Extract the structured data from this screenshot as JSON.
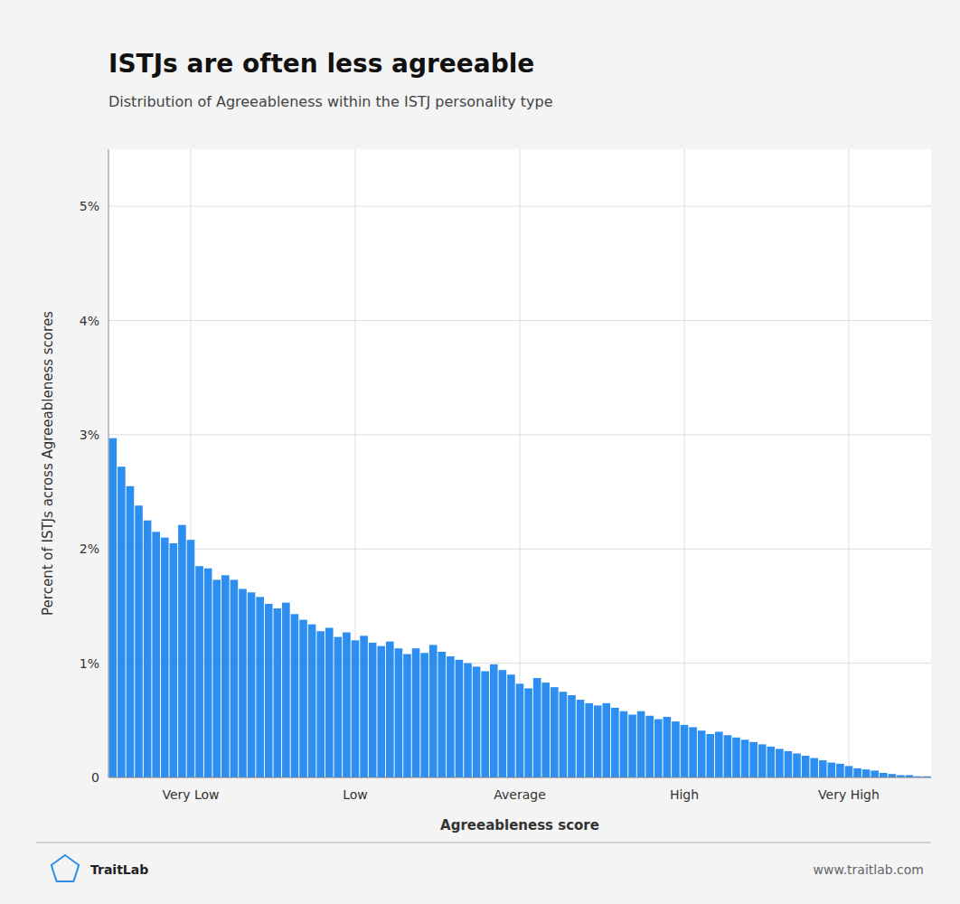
{
  "chart_data": {
    "type": "bar",
    "title": "ISTJs are often less agreeable",
    "subtitle": "Distribution of Agreeableness within the ISTJ personality type",
    "xlabel": "Agreeableness score",
    "ylabel": "Percent of ISTJs across Agreeableness scores",
    "annotations": [
      "TraitLab",
      "www.traitlab.com"
    ],
    "color": "#2B8EF0",
    "grid": true,
    "ylim": [
      0,
      0.055
    ],
    "yticks": [
      0,
      {
        "value": 0.01,
        "label": "1%"
      },
      {
        "value": 0.02,
        "label": "2%"
      },
      {
        "value": 0.03,
        "label": "3%"
      },
      {
        "value": 0.04,
        "label": "4%"
      },
      {
        "value": 0.05,
        "label": "5%"
      }
    ],
    "categories": [
      null,
      null,
      null,
      null,
      null,
      null,
      null,
      null,
      null,
      "Very Low",
      null,
      null,
      null,
      null,
      null,
      null,
      null,
      null,
      null,
      null,
      null,
      null,
      null,
      null,
      null,
      null,
      null,
      null,
      "Low",
      null,
      null,
      null,
      null,
      null,
      null,
      null,
      null,
      null,
      null,
      null,
      null,
      null,
      null,
      null,
      null,
      null,
      null,
      "Average",
      null,
      null,
      null,
      null,
      null,
      null,
      null,
      null,
      null,
      null,
      null,
      null,
      null,
      null,
      null,
      null,
      null,
      null,
      "High",
      null,
      null,
      null,
      null,
      null,
      null,
      null,
      null,
      null,
      null,
      null,
      null,
      null,
      null,
      null,
      null,
      null,
      null,
      "Very High",
      null,
      null,
      null,
      null,
      null,
      null,
      null,
      null,
      null
    ],
    "values": [
      0.0297,
      0.0272,
      0.0255,
      0.0238,
      0.0225,
      0.0215,
      0.021,
      0.0205,
      0.0221,
      0.0208,
      0.0185,
      0.0183,
      0.0173,
      0.0177,
      0.0173,
      0.0165,
      0.0162,
      0.0158,
      0.0152,
      0.0148,
      0.0153,
      0.0143,
      0.0138,
      0.0134,
      0.0128,
      0.0131,
      0.0123,
      0.0127,
      0.012,
      0.0124,
      0.0118,
      0.0115,
      0.0119,
      0.0113,
      0.0108,
      0.0113,
      0.0109,
      0.0116,
      0.011,
      0.0106,
      0.0103,
      0.01,
      0.0097,
      0.0093,
      0.0099,
      0.0094,
      0.009,
      0.0082,
      0.0078,
      0.0087,
      0.0083,
      0.0079,
      0.0075,
      0.0072,
      0.0068,
      0.0065,
      0.0063,
      0.0065,
      0.0061,
      0.0058,
      0.0055,
      0.0058,
      0.0054,
      0.0051,
      0.0053,
      0.0049,
      0.0046,
      0.0044,
      0.0041,
      0.0038,
      0.004,
      0.0037,
      0.0035,
      0.0033,
      0.0031,
      0.0029,
      0.0027,
      0.0025,
      0.0023,
      0.0021,
      0.0019,
      0.0017,
      0.0015,
      0.0013,
      0.0012,
      0.001,
      0.0008,
      0.0007,
      0.0006,
      0.0004,
      0.0003,
      0.0002,
      0.0002,
      0.0001,
      0.0001
    ]
  }
}
